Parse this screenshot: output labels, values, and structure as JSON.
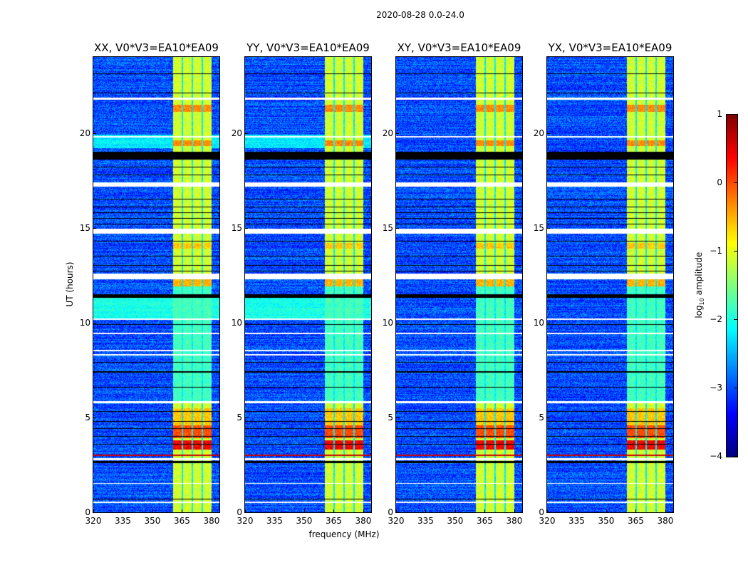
{
  "chart_data": {
    "type": "heatmap",
    "title": "2020-08-28 0.0-24.0",
    "xlabel": "frequency (MHz)",
    "ylabel": "UT (hours)",
    "xlim": [
      320,
      384
    ],
    "ylim": [
      0,
      24
    ],
    "xticks": [
      320,
      335,
      350,
      365,
      380
    ],
    "yticks": [
      0,
      5,
      10,
      15,
      20
    ],
    "colormap": "jet",
    "colorbar": {
      "label_prefix": "log",
      "label_sub": "10",
      "label_suffix": " amplitude",
      "clim": [
        -4,
        1
      ],
      "ticks": [
        "1",
        "0",
        "−1",
        "−2",
        "−3",
        "−4"
      ],
      "tick_values": [
        1,
        0,
        -1,
        -2,
        -3,
        -4
      ]
    },
    "panels": [
      {
        "title": "XX, V0*V3=EA10*EA09",
        "broadband_elevated": true
      },
      {
        "title": "YY, V0*V3=EA10*EA09",
        "broadband_elevated": true
      },
      {
        "title": "XY, V0*V3=EA10*EA09",
        "broadband_elevated": false
      },
      {
        "title": "YX, V0*V3=EA10*EA09",
        "broadband_elevated": false
      }
    ],
    "background_level": -3.0,
    "rfi_band": {
      "range_mhz": [
        360.5,
        380
      ],
      "level": -1.1,
      "gaps_mhz": [
        [
          364.8,
          365.5
        ],
        [
          370.0,
          370.7
        ],
        [
          375.0,
          375.6
        ]
      ],
      "gap_level": -2.2
    },
    "rfi_hot_intervals": [
      {
        "hours": [
          21.1,
          21.5
        ],
        "level": -0.3
      },
      {
        "hours": [
          19.3,
          19.6
        ],
        "level": -0.3
      },
      {
        "hours": [
          13.9,
          14.2
        ],
        "level": -0.6
      },
      {
        "hours": [
          11.9,
          12.3
        ],
        "level": -0.5
      },
      {
        "hours": [
          4.6,
          5.5
        ],
        "level": -0.6
      },
      {
        "hours": [
          3.9,
          4.6
        ],
        "level": 0.0
      },
      {
        "hours": [
          3.3,
          3.8
        ],
        "level": 0.4
      }
    ],
    "broadband_intervals": [
      {
        "hours": [
          19.2,
          19.9
        ],
        "level": -2.2
      },
      {
        "hours": [
          10.2,
          11.4
        ],
        "level": -2.0
      }
    ],
    "flagged_white_hours": [
      [
        21.75,
        21.85
      ],
      [
        19.75,
        19.82
      ],
      [
        17.15,
        17.4
      ],
      [
        14.7,
        14.95
      ],
      [
        12.3,
        12.6
      ],
      [
        10.15,
        10.2
      ],
      [
        9.4,
        9.45
      ],
      [
        8.25,
        8.35
      ],
      [
        8.5,
        8.55
      ],
      [
        5.75,
        5.85
      ],
      [
        2.75,
        2.85
      ],
      [
        1.5,
        1.55
      ],
      [
        0.5,
        0.55
      ]
    ],
    "flagged_black_hours": [
      [
        23.08,
        23.12
      ],
      [
        22.08,
        22.12
      ],
      [
        18.6,
        19.0
      ],
      [
        18.18,
        18.22
      ],
      [
        17.78,
        17.82
      ],
      [
        16.48,
        16.52
      ],
      [
        16.08,
        16.12
      ],
      [
        15.78,
        15.82
      ],
      [
        15.48,
        15.52
      ],
      [
        15.18,
        15.22
      ],
      [
        14.28,
        14.32
      ],
      [
        13.48,
        13.52
      ],
      [
        12.98,
        13.02
      ],
      [
        12.68,
        12.72
      ],
      [
        11.3,
        11.5
      ],
      [
        9.88,
        9.92
      ],
      [
        7.88,
        7.92
      ],
      [
        7.38,
        7.42
      ],
      [
        6.58,
        6.62
      ],
      [
        5.28,
        5.32
      ],
      [
        4.78,
        4.82
      ],
      [
        4.38,
        4.42
      ],
      [
        3.98,
        4.02
      ],
      [
        3.58,
        3.62
      ],
      [
        2.6,
        2.7
      ],
      [
        0.68,
        0.72
      ]
    ],
    "red_line_hours": [
      [
        2.98,
        3.06
      ]
    ]
  }
}
